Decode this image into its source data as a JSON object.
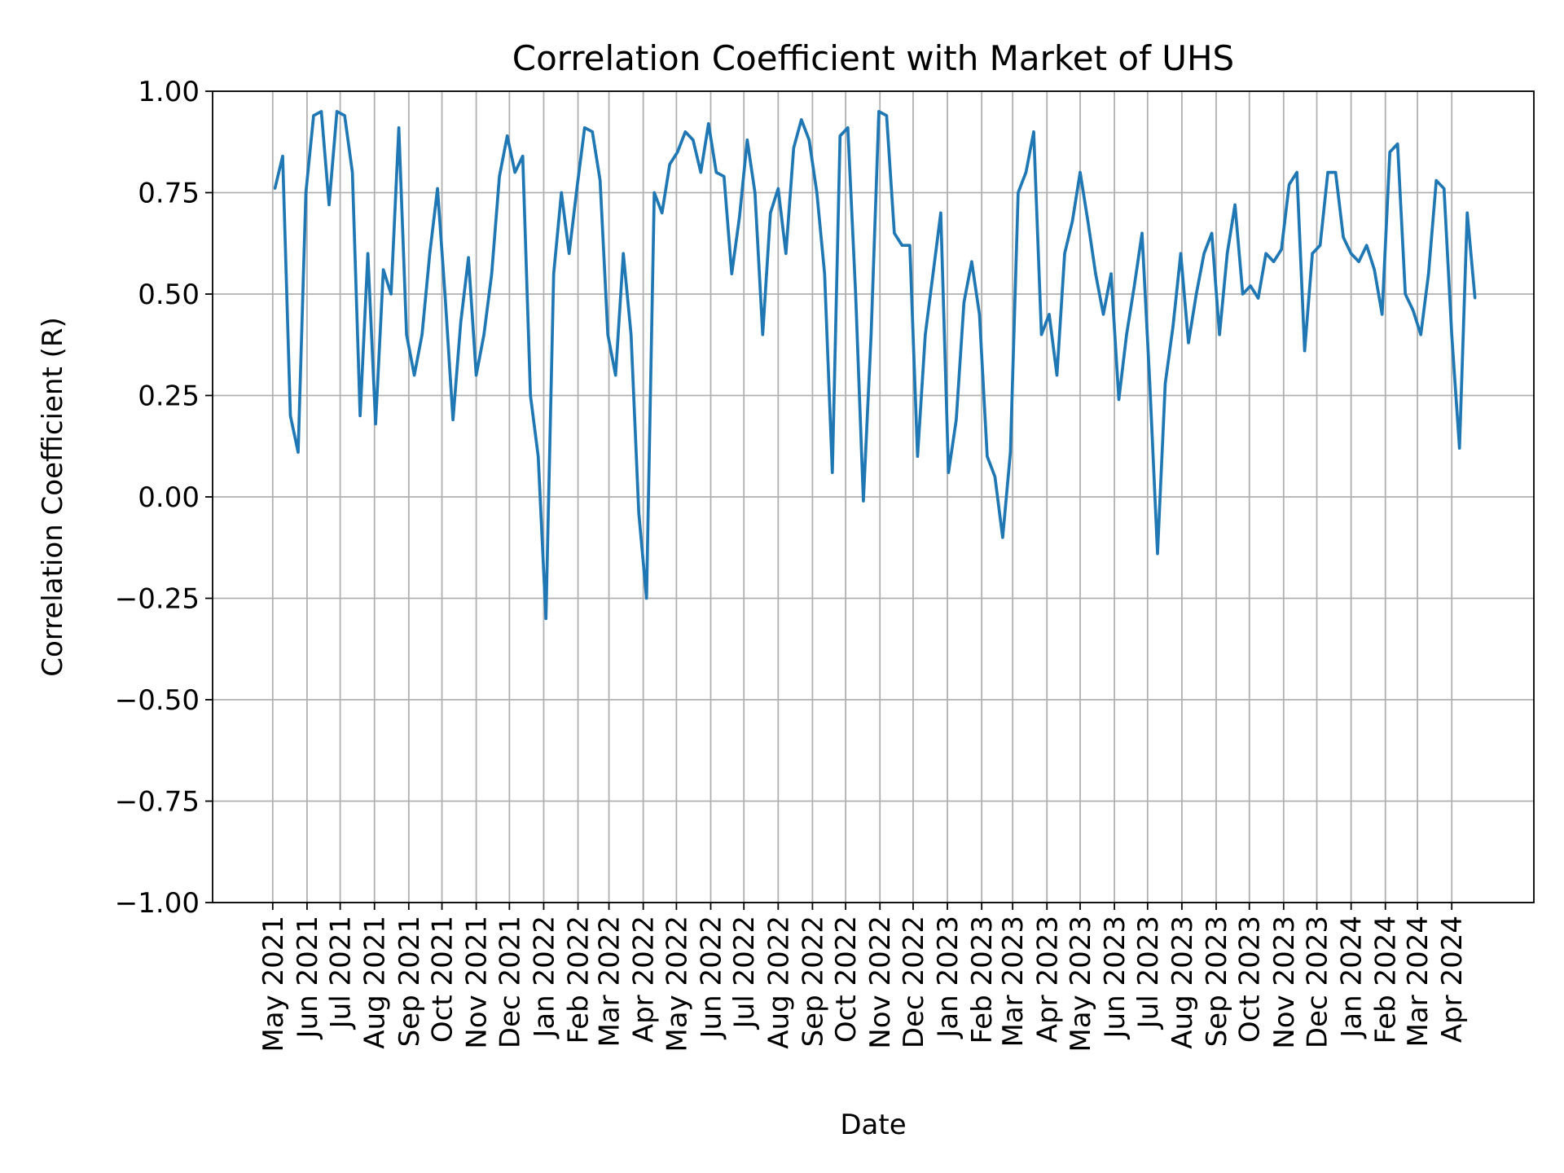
{
  "chart_data": {
    "type": "line",
    "title": "Correlation Coefficient with Market of UHS",
    "xlabel": "Date",
    "ylabel": "Correlation Coefficient (R)",
    "ylim": [
      -1.0,
      1.0
    ],
    "yticks": [
      "1.00",
      "0.75",
      "0.50",
      "0.25",
      "0.00",
      "−0.25",
      "−0.50",
      "−0.75",
      "−1.00"
    ],
    "ytick_values": [
      1.0,
      0.75,
      0.5,
      0.25,
      0.0,
      -0.25,
      -0.5,
      -0.75,
      -1.0
    ],
    "xticks": [
      "May 2021",
      "Jun 2021",
      "Jul 2021",
      "Aug 2021",
      "Sep 2021",
      "Oct 2021",
      "Nov 2021",
      "Dec 2021",
      "Jan 2022",
      "Feb 2022",
      "Mar 2022",
      "Apr 2022",
      "May 2022",
      "Jun 2022",
      "Jul 2022",
      "Aug 2022",
      "Sep 2022",
      "Oct 2022",
      "Nov 2022",
      "Dec 2022",
      "Jan 2023",
      "Feb 2023",
      "Mar 2023",
      "Apr 2023",
      "May 2023",
      "Jun 2023",
      "Jul 2023",
      "Aug 2023",
      "Sep 2023",
      "Oct 2023",
      "Nov 2023",
      "Dec 2023",
      "Jan 2024",
      "Feb 2024",
      "Mar 2024",
      "Apr 2024"
    ],
    "grid": true,
    "line_color": "#1f77b4",
    "x": [
      "2021-05-03",
      "2021-05-10",
      "2021-05-17",
      "2021-05-24",
      "2021-05-31",
      "2021-06-07",
      "2021-06-14",
      "2021-06-21",
      "2021-06-28",
      "2021-07-05",
      "2021-07-12",
      "2021-07-19",
      "2021-07-26",
      "2021-08-02",
      "2021-08-09",
      "2021-08-16",
      "2021-08-23",
      "2021-08-30",
      "2021-09-06",
      "2021-09-13",
      "2021-09-20",
      "2021-09-27",
      "2021-10-04",
      "2021-10-11",
      "2021-10-18",
      "2021-10-25",
      "2021-11-01",
      "2021-11-08",
      "2021-11-15",
      "2021-11-22",
      "2021-11-29",
      "2021-12-06",
      "2021-12-13",
      "2021-12-20",
      "2021-12-27",
      "2022-01-03",
      "2022-01-10",
      "2022-01-17",
      "2022-01-24",
      "2022-01-31",
      "2022-02-07",
      "2022-02-14",
      "2022-02-21",
      "2022-02-28",
      "2022-03-07",
      "2022-03-14",
      "2022-03-21",
      "2022-03-28",
      "2022-04-04",
      "2022-04-11",
      "2022-04-18",
      "2022-04-25",
      "2022-05-02",
      "2022-05-09",
      "2022-05-16",
      "2022-05-23",
      "2022-05-30",
      "2022-06-06",
      "2022-06-13",
      "2022-06-20",
      "2022-06-27",
      "2022-07-04",
      "2022-07-11",
      "2022-07-18",
      "2022-07-25",
      "2022-08-01",
      "2022-08-08",
      "2022-08-15",
      "2022-08-22",
      "2022-08-29",
      "2022-09-05",
      "2022-09-12",
      "2022-09-19",
      "2022-09-26",
      "2022-10-03",
      "2022-10-10",
      "2022-10-17",
      "2022-10-24",
      "2022-10-31",
      "2022-11-07",
      "2022-11-14",
      "2022-11-21",
      "2022-11-28",
      "2022-12-05",
      "2022-12-12",
      "2022-12-19",
      "2022-12-26",
      "2023-01-02",
      "2023-01-09",
      "2023-01-16",
      "2023-01-23",
      "2023-01-30",
      "2023-02-06",
      "2023-02-13",
      "2023-02-20",
      "2023-02-27",
      "2023-03-06",
      "2023-03-13",
      "2023-03-20",
      "2023-03-27",
      "2023-04-03",
      "2023-04-10",
      "2023-04-17",
      "2023-04-24",
      "2023-05-01",
      "2023-05-08",
      "2023-05-15",
      "2023-05-22",
      "2023-05-29",
      "2023-06-05",
      "2023-06-12",
      "2023-06-19",
      "2023-06-26",
      "2023-07-03",
      "2023-07-10",
      "2023-07-17",
      "2023-07-24",
      "2023-07-31",
      "2023-08-07",
      "2023-08-14",
      "2023-08-21",
      "2023-08-28",
      "2023-09-04",
      "2023-09-11",
      "2023-09-18",
      "2023-09-25",
      "2023-10-02",
      "2023-10-09",
      "2023-10-16",
      "2023-10-23",
      "2023-10-30",
      "2023-11-06",
      "2023-11-13",
      "2023-11-20",
      "2023-11-27",
      "2023-12-04",
      "2023-12-11",
      "2023-12-18",
      "2023-12-25",
      "2024-01-01",
      "2024-01-08",
      "2024-01-15",
      "2024-01-22",
      "2024-01-29",
      "2024-02-05",
      "2024-02-12",
      "2024-02-19",
      "2024-02-26",
      "2024-03-04",
      "2024-03-11",
      "2024-03-18",
      "2024-03-25",
      "2024-04-01",
      "2024-04-08",
      "2024-04-15",
      "2024-04-22"
    ],
    "y": [
      0.76,
      0.84,
      0.2,
      0.11,
      0.75,
      0.94,
      0.95,
      0.72,
      0.95,
      0.94,
      0.8,
      0.2,
      0.6,
      0.18,
      0.56,
      0.5,
      0.91,
      0.4,
      0.3,
      0.4,
      0.6,
      0.76,
      0.49,
      0.19,
      0.43,
      0.59,
      0.3,
      0.4,
      0.55,
      0.79,
      0.89,
      0.8,
      0.84,
      0.25,
      0.1,
      -0.3,
      0.55,
      0.75,
      0.6,
      0.76,
      0.91,
      0.9,
      0.78,
      0.4,
      0.3,
      0.6,
      0.4,
      -0.04,
      -0.25,
      0.75,
      0.7,
      0.82,
      0.85,
      0.9,
      0.88,
      0.8,
      0.92,
      0.8,
      0.79,
      0.55,
      0.69,
      0.88,
      0.75,
      0.4,
      0.7,
      0.76,
      0.6,
      0.86,
      0.93,
      0.88,
      0.75,
      0.55,
      0.06,
      0.89,
      0.91,
      0.5,
      -0.01,
      0.4,
      0.95,
      0.94,
      0.65,
      0.62,
      0.62,
      0.1,
      0.4,
      0.55,
      0.7,
      0.06,
      0.19,
      0.48,
      0.58,
      0.45,
      0.1,
      0.05,
      -0.1,
      0.11,
      0.75,
      0.8,
      0.9,
      0.4,
      0.45,
      0.3,
      0.6,
      0.68,
      0.8,
      0.68,
      0.55,
      0.45,
      0.55,
      0.24,
      0.4,
      0.52,
      0.65,
      0.28,
      -0.14,
      0.28,
      0.42,
      0.6,
      0.38,
      0.5,
      0.6,
      0.65,
      0.4,
      0.6,
      0.72,
      0.5,
      0.52,
      0.49,
      0.6,
      0.58,
      0.61,
      0.77,
      0.8,
      0.36,
      0.6,
      0.62,
      0.8,
      0.8,
      0.64,
      0.6,
      0.58,
      0.62,
      0.56,
      0.45,
      0.85,
      0.87,
      0.5,
      0.46,
      0.4,
      0.55,
      0.78,
      0.76,
      0.4,
      0.12,
      0.7,
      0.49
    ]
  }
}
